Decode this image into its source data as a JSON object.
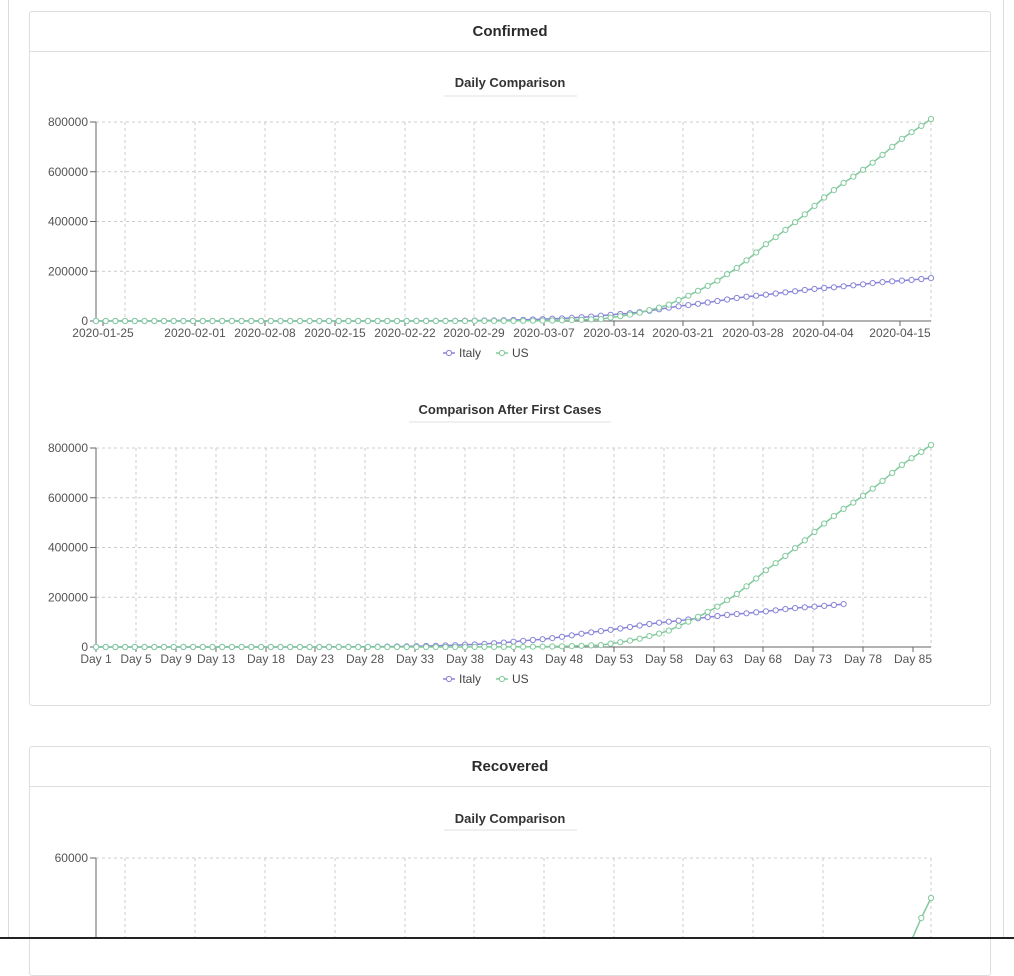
{
  "panels": [
    {
      "title": "Confirmed"
    },
    {
      "title": "Recovered"
    }
  ],
  "colors": {
    "italy": "#8884d8",
    "us": "#82ca9d",
    "grid": "#cccccc",
    "axis": "#666666"
  },
  "charts": [
    {
      "title": "Daily Comparison",
      "xtick_labels": [
        "2020-01-25",
        "2020-02-01",
        "2020-02-08",
        "2020-02-15",
        "2020-02-22",
        "2020-02-29",
        "2020-03-07",
        "2020-03-14",
        "2020-03-21",
        "2020-03-28",
        "2020-04-04",
        "2020-04-15"
      ],
      "ytick_labels": [
        "800000",
        "600000",
        "400000",
        "200000",
        "0"
      ],
      "legend": [
        "Italy",
        "US"
      ]
    },
    {
      "title": "Comparison After First Cases",
      "xtick_labels": [
        "Day 1",
        "Day 5",
        "Day 9",
        "Day 13",
        "Day 18",
        "Day 23",
        "Day 28",
        "Day 33",
        "Day 38",
        "Day 43",
        "Day 48",
        "Day 53",
        "Day 58",
        "Day 63",
        "Day 68",
        "Day 73",
        "Day 78",
        "Day 85"
      ],
      "ytick_labels": [
        "800000",
        "600000",
        "400000",
        "200000",
        "0"
      ],
      "legend": [
        "Italy",
        "US"
      ]
    },
    {
      "title": "Daily Comparison",
      "xtick_labels": [],
      "ytick_labels": [
        "60000",
        "45000"
      ],
      "legend": []
    }
  ],
  "chart_data": [
    {
      "type": "line",
      "title": "Daily Comparison",
      "x_start": "2020-01-22",
      "x_end": "2020-04-17",
      "ylim": [
        0,
        800000
      ],
      "series": [
        {
          "name": "Italy",
          "values": [
            0,
            0,
            0,
            0,
            0,
            0,
            0,
            0,
            0,
            2,
            2,
            2,
            2,
            2,
            2,
            3,
            3,
            3,
            3,
            3,
            3,
            3,
            3,
            3,
            3,
            3,
            3,
            3,
            3,
            3,
            20,
            62,
            155,
            229,
            322,
            453,
            655,
            888,
            1128,
            1694,
            2036,
            2502,
            3089,
            3858,
            4636,
            5883,
            7375,
            9172,
            10149,
            12462,
            15113,
            17660,
            21157,
            24747,
            27980,
            31506,
            35713,
            41035,
            47021,
            53578,
            59138,
            63927,
            69176,
            74386,
            80589,
            86498,
            92472,
            97689,
            101739,
            105792,
            110574,
            115242,
            119827,
            124632,
            128948,
            132547,
            135586,
            139422,
            143626,
            147577,
            152271,
            156363,
            159516,
            162488,
            165155,
            168941,
            172434
          ]
        },
        {
          "name": "US",
          "values": [
            1,
            1,
            2,
            2,
            5,
            5,
            5,
            5,
            5,
            7,
            8,
            8,
            11,
            11,
            11,
            11,
            12,
            12,
            13,
            13,
            13,
            13,
            13,
            13,
            13,
            13,
            15,
            15,
            15,
            51,
            51,
            57,
            58,
            60,
            68,
            74,
            98,
            118,
            149,
            217,
            262,
            402,
            518,
            583,
            959,
            1281,
            1663,
            2179,
            2727,
            3499,
            4632,
            6421,
            7783,
            13747,
            19273,
            25600,
            33276,
            43843,
            53740,
            65778,
            83836,
            101657,
            121465,
            140909,
            161831,
            188172,
            213242,
            243622,
            275367,
            308650,
            336802,
            366317,
            397121,
            428654,
            462780,
            496535,
            526396,
            555313,
            580619,
            607670,
            636350,
            667592,
            699706,
            732197,
            758809,
            784326,
            811865
          ]
        }
      ]
    },
    {
      "type": "line",
      "title": "Comparison After First Cases",
      "x_start_day": 1,
      "ylim": [
        0,
        800000
      ],
      "series": [
        {
          "name": "Italy",
          "values": [
            2,
            2,
            2,
            2,
            2,
            2,
            3,
            3,
            3,
            3,
            3,
            3,
            3,
            3,
            3,
            3,
            3,
            3,
            3,
            3,
            3,
            20,
            62,
            155,
            229,
            322,
            453,
            655,
            888,
            1128,
            1694,
            2036,
            2502,
            3089,
            3858,
            4636,
            5883,
            7375,
            9172,
            10149,
            12462,
            15113,
            17660,
            21157,
            24747,
            27980,
            31506,
            35713,
            41035,
            47021,
            53578,
            59138,
            63927,
            69176,
            74386,
            80589,
            86498,
            92472,
            97689,
            101739,
            105792,
            110574,
            115242,
            119827,
            124632,
            128948,
            132547,
            135586,
            139422,
            143626,
            147577,
            152271,
            156363,
            159516,
            162488,
            165155,
            168941,
            172434
          ]
        },
        {
          "name": "US",
          "values": [
            1,
            1,
            2,
            2,
            5,
            5,
            5,
            5,
            5,
            7,
            8,
            8,
            11,
            11,
            11,
            11,
            12,
            12,
            13,
            13,
            13,
            13,
            13,
            13,
            13,
            13,
            15,
            15,
            15,
            51,
            51,
            57,
            58,
            60,
            68,
            74,
            98,
            118,
            149,
            217,
            262,
            402,
            518,
            583,
            959,
            1281,
            1663,
            2179,
            2727,
            3499,
            4632,
            6421,
            7783,
            13747,
            19273,
            25600,
            33276,
            43843,
            53740,
            65778,
            83836,
            101657,
            121465,
            140909,
            161831,
            188172,
            213242,
            243622,
            275367,
            308650,
            336802,
            366317,
            397121,
            428654,
            462780,
            496535,
            526396,
            555313,
            580619,
            607670,
            636350,
            667592,
            699706,
            732197,
            758809,
            784326,
            811865
          ]
        }
      ]
    },
    {
      "type": "line",
      "title": "Daily Comparison",
      "ylim": [
        30000,
        60000
      ],
      "series": [
        {
          "name": "Italy",
          "values": [
            0,
            0,
            0,
            0,
            0,
            0,
            0,
            0,
            0,
            0,
            0,
            0,
            0,
            0,
            0,
            0,
            0,
            0,
            0,
            0,
            0,
            0,
            0,
            0,
            0,
            0,
            0,
            0,
            0,
            0,
            0,
            0,
            0,
            0,
            0,
            0,
            0,
            0,
            0,
            0,
            0,
            0,
            0,
            0,
            0,
            0,
            0,
            0,
            0,
            0,
            0,
            0,
            0,
            0,
            0,
            0,
            0,
            0,
            0,
            0,
            0,
            0,
            0,
            0,
            0,
            0,
            0,
            0,
            0,
            0,
            0,
            0,
            0,
            0,
            0,
            0,
            0,
            0,
            0,
            0,
            0,
            0,
            30000,
            35000,
            38000,
            40000,
            41000
          ]
        },
        {
          "name": "US",
          "values": [
            0,
            0,
            0,
            0,
            0,
            0,
            0,
            0,
            0,
            0,
            0,
            0,
            0,
            0,
            0,
            0,
            0,
            0,
            0,
            0,
            0,
            0,
            0,
            0,
            0,
            0,
            0,
            0,
            0,
            0,
            0,
            0,
            0,
            0,
            0,
            0,
            0,
            0,
            0,
            0,
            0,
            0,
            0,
            0,
            0,
            0,
            0,
            0,
            0,
            0,
            0,
            0,
            0,
            0,
            0,
            0,
            0,
            0,
            0,
            0,
            0,
            0,
            0,
            0,
            0,
            0,
            0,
            0,
            0,
            0,
            0,
            0,
            0,
            0,
            0,
            0,
            0,
            0,
            0,
            0,
            0,
            0,
            30000,
            45000,
            47500,
            51000,
            54000
          ]
        }
      ]
    }
  ]
}
